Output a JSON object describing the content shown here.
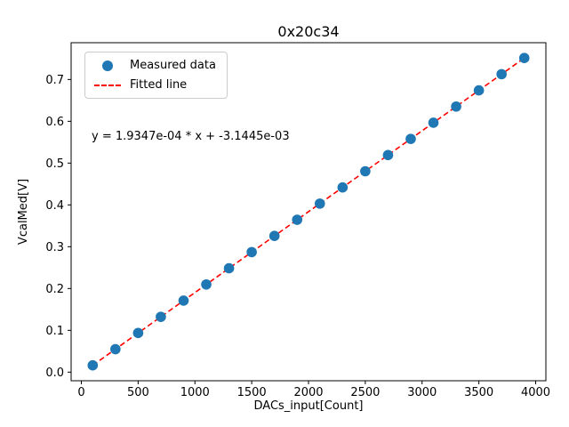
{
  "chart_data": {
    "type": "scatter",
    "title": "0x20c34",
    "xlabel": "DACs_input[Count]",
    "ylabel": "VcalMed[V]",
    "xlim": [
      -90,
      4090
    ],
    "ylim": [
      -0.0206,
      0.788
    ],
    "grid": false,
    "xticks": [
      0,
      500,
      1000,
      1500,
      2000,
      2500,
      3000,
      3500,
      4000
    ],
    "xtick_labels": [
      "0",
      "500",
      "1000",
      "1500",
      "2000",
      "2500",
      "3000",
      "3500",
      "4000"
    ],
    "yticks": [
      0.0,
      0.1,
      0.2,
      0.3,
      0.4,
      0.5,
      0.6,
      0.7
    ],
    "ytick_labels": [
      "0.0",
      "0.1",
      "0.2",
      "0.3",
      "0.4",
      "0.5",
      "0.6",
      "0.7"
    ],
    "series": [
      {
        "name": "Measured data",
        "type": "scatter",
        "color": "#1f77b4",
        "x": [
          100,
          300,
          500,
          700,
          900,
          1100,
          1300,
          1500,
          1700,
          1900,
          2100,
          2300,
          2500,
          2700,
          2900,
          3100,
          3300,
          3500,
          3700,
          3900
        ],
        "y": [
          0.0162,
          0.0549,
          0.0936,
          0.1323,
          0.171,
          0.2097,
          0.2484,
          0.2871,
          0.3258,
          0.3645,
          0.4031,
          0.4418,
          0.4805,
          0.5192,
          0.5579,
          0.5966,
          0.6353,
          0.674,
          0.7127,
          0.7514
        ]
      },
      {
        "name": "Fitted line",
        "type": "line",
        "style": "dashed",
        "color": "#ff0000",
        "fit": {
          "slope": 0.00019347,
          "intercept": -0.0031445
        },
        "x_range": [
          100,
          3900
        ]
      }
    ],
    "annotation": {
      "text": "y = 1.9347e-04 * x + -3.1445e-03",
      "x": 150,
      "y": 0.565
    },
    "legend": {
      "position": "upper-left",
      "entries": [
        "Measured data",
        "Fitted line"
      ]
    }
  }
}
